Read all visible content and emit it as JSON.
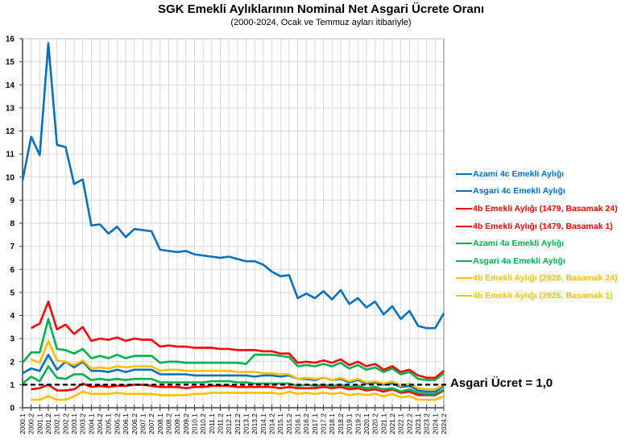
{
  "chart_data": {
    "type": "line",
    "title": "SGK Emekli Aylıklarının Nominal Net Asgari Ücrete Oranı",
    "subtitle": "(2000-2024, Ocak ve Temmuz ayları itibariyle)",
    "xlabel": "",
    "ylabel": "",
    "ylim": [
      0,
      16
    ],
    "yticks": [
      0,
      1,
      2,
      3,
      4,
      5,
      6,
      7,
      8,
      9,
      10,
      11,
      12,
      13,
      14,
      15,
      16
    ],
    "grid": true,
    "legend_position": "right",
    "x": [
      "2000.1",
      "2000.2",
      "2001.1",
      "2001.2",
      "2002.1",
      "2002.2",
      "2003.1",
      "2003.2",
      "2004.1",
      "2004.2",
      "2005.1",
      "2005.2",
      "2006.1",
      "2006.2",
      "2007.1",
      "2007.2",
      "2008.1",
      "2008.2",
      "2009.1",
      "2009.2",
      "2010.1",
      "2010.2",
      "2011.1",
      "2011.2",
      "2012.1",
      "2012.2",
      "2013.1",
      "2013.2",
      "2014.1",
      "2014.2",
      "2015.1",
      "2015.2",
      "2016.1",
      "2016.2",
      "2017.1",
      "2017.2",
      "2018.1",
      "2018.2",
      "2019.1",
      "2019.2",
      "2020.1",
      "2020.2",
      "2021.1",
      "2021.2",
      "2022.1",
      "2022.2",
      "2023.1",
      "2023.2",
      "2024.1",
      "2024.2"
    ],
    "series": [
      {
        "name": "Azami 4c Emekli Aylığı",
        "color": "#0070C0",
        "values": [
          9.85,
          11.75,
          10.95,
          15.8,
          11.4,
          11.3,
          9.7,
          9.9,
          7.9,
          7.95,
          7.55,
          7.85,
          7.4,
          7.75,
          7.7,
          7.65,
          6.85,
          6.8,
          6.75,
          6.8,
          6.65,
          6.6,
          6.55,
          6.5,
          6.55,
          6.45,
          6.35,
          6.35,
          6.2,
          5.9,
          5.7,
          5.75,
          4.75,
          4.95,
          4.75,
          5.05,
          4.7,
          5.1,
          4.5,
          4.75,
          4.35,
          4.6,
          4.05,
          4.4,
          3.85,
          4.2,
          3.55,
          3.45,
          3.45,
          4.1
        ]
      },
      {
        "name": "Asgari 4c Emekli Aylığı",
        "color": "#0070C0",
        "values": [
          1.5,
          1.7,
          1.6,
          2.3,
          1.65,
          2.0,
          1.75,
          2.0,
          1.6,
          1.6,
          1.55,
          1.65,
          1.55,
          1.65,
          1.65,
          1.65,
          1.45,
          1.45,
          1.45,
          1.45,
          1.4,
          1.4,
          1.4,
          1.4,
          1.4,
          1.4,
          1.4,
          1.35,
          1.4,
          1.4,
          1.35,
          1.4,
          1.25,
          1.25,
          1.2,
          1.3,
          1.2,
          1.25,
          1.1,
          1.2,
          1.05,
          1.1,
          1.0,
          1.05,
          0.9,
          0.95,
          0.75,
          0.7,
          0.7,
          0.95
        ]
      },
      {
        "name": "4b Emekli Aylığı (1479, Basamak 24)",
        "color": "#FF0000",
        "values": [
          null,
          3.45,
          3.65,
          4.6,
          3.4,
          3.6,
          3.2,
          3.5,
          2.9,
          3.0,
          2.95,
          3.05,
          2.9,
          3.0,
          2.95,
          2.95,
          2.65,
          2.7,
          2.65,
          2.65,
          2.6,
          2.6,
          2.6,
          2.55,
          2.55,
          2.5,
          2.5,
          2.5,
          2.45,
          2.45,
          2.35,
          2.35,
          1.95,
          2.0,
          1.95,
          2.05,
          1.95,
          2.1,
          1.85,
          2.0,
          1.8,
          1.9,
          1.65,
          1.8,
          1.55,
          1.65,
          1.4,
          1.3,
          1.3,
          1.6
        ]
      },
      {
        "name": "4b Emekli Aylığı (1479, Basamak 1)",
        "color": "#FF0000",
        "values": [
          null,
          0.8,
          0.85,
          1.0,
          0.75,
          0.75,
          0.8,
          1.05,
          0.9,
          0.95,
          0.9,
          0.95,
          0.95,
          1.0,
          1.0,
          0.95,
          0.9,
          0.9,
          0.9,
          0.85,
          0.9,
          0.9,
          0.95,
          0.95,
          0.95,
          0.9,
          0.9,
          0.9,
          0.9,
          0.9,
          0.85,
          0.9,
          0.85,
          0.85,
          0.85,
          0.9,
          0.85,
          0.9,
          0.8,
          0.85,
          0.75,
          0.8,
          0.7,
          0.8,
          0.65,
          0.7,
          0.55,
          0.55,
          0.55,
          0.75
        ]
      },
      {
        "name": "Azami 4a Emekli Aylığı",
        "color": "#00B050",
        "values": [
          1.95,
          2.4,
          2.4,
          3.85,
          2.55,
          2.5,
          2.35,
          2.55,
          2.15,
          2.25,
          2.15,
          2.3,
          2.15,
          2.25,
          2.25,
          2.25,
          1.95,
          2.0,
          2.0,
          1.95,
          1.95,
          1.95,
          1.95,
          1.95,
          1.95,
          1.95,
          1.9,
          2.3,
          2.3,
          2.3,
          2.25,
          2.2,
          1.8,
          1.85,
          1.8,
          1.9,
          1.8,
          1.95,
          1.7,
          1.85,
          1.65,
          1.75,
          1.55,
          1.7,
          1.45,
          1.55,
          1.25,
          1.2,
          1.2,
          1.5
        ]
      },
      {
        "name": "Asgari 4a Emekli Aylığı",
        "color": "#00B050",
        "values": [
          1.05,
          1.35,
          1.15,
          1.8,
          1.3,
          1.25,
          1.45,
          1.45,
          1.2,
          1.25,
          1.2,
          1.25,
          1.2,
          1.25,
          1.25,
          1.25,
          1.1,
          1.1,
          1.1,
          1.1,
          1.1,
          1.1,
          1.15,
          1.15,
          1.15,
          1.1,
          1.1,
          1.05,
          1.05,
          1.05,
          1.05,
          1.05,
          0.95,
          1.0,
          0.95,
          1.0,
          0.95,
          1.0,
          0.9,
          0.95,
          0.85,
          0.9,
          0.8,
          0.85,
          0.7,
          0.8,
          0.65,
          0.6,
          0.6,
          0.8
        ]
      },
      {
        "name": "4b Emekli Aylığı (2926, Basamak 24)",
        "color": "#FFC000",
        "values": [
          null,
          2.1,
          1.95,
          2.9,
          2.05,
          2.0,
          1.85,
          2.05,
          1.7,
          1.75,
          1.7,
          1.8,
          1.75,
          1.8,
          1.8,
          1.8,
          1.6,
          1.65,
          1.65,
          1.6,
          1.6,
          1.6,
          1.6,
          1.6,
          1.6,
          1.55,
          1.55,
          1.55,
          1.5,
          1.5,
          1.45,
          1.45,
          1.25,
          1.3,
          1.25,
          1.3,
          1.2,
          1.3,
          1.15,
          1.25,
          1.1,
          1.15,
          1.05,
          1.15,
          0.95,
          1.05,
          0.85,
          0.8,
          0.8,
          1.0
        ]
      },
      {
        "name": "4b Emekli Aylığı (2926, Basamak 1)",
        "color": "#FFC000",
        "values": [
          null,
          0.35,
          0.35,
          0.5,
          0.35,
          0.35,
          0.5,
          0.7,
          0.6,
          0.6,
          0.6,
          0.65,
          0.6,
          0.6,
          0.6,
          0.6,
          0.55,
          0.55,
          0.55,
          0.55,
          0.6,
          0.6,
          0.65,
          0.65,
          0.65,
          0.65,
          0.65,
          0.65,
          0.65,
          0.65,
          0.6,
          0.7,
          0.6,
          0.65,
          0.6,
          0.65,
          0.6,
          0.65,
          0.55,
          0.6,
          0.55,
          0.6,
          0.5,
          0.6,
          0.45,
          0.5,
          0.35,
          0.35,
          0.35,
          0.5
        ]
      }
    ],
    "reference_line": {
      "value": 1.0,
      "label": "Asgari Ücret = 1,0",
      "style": "dashed",
      "color": "#000000"
    }
  }
}
